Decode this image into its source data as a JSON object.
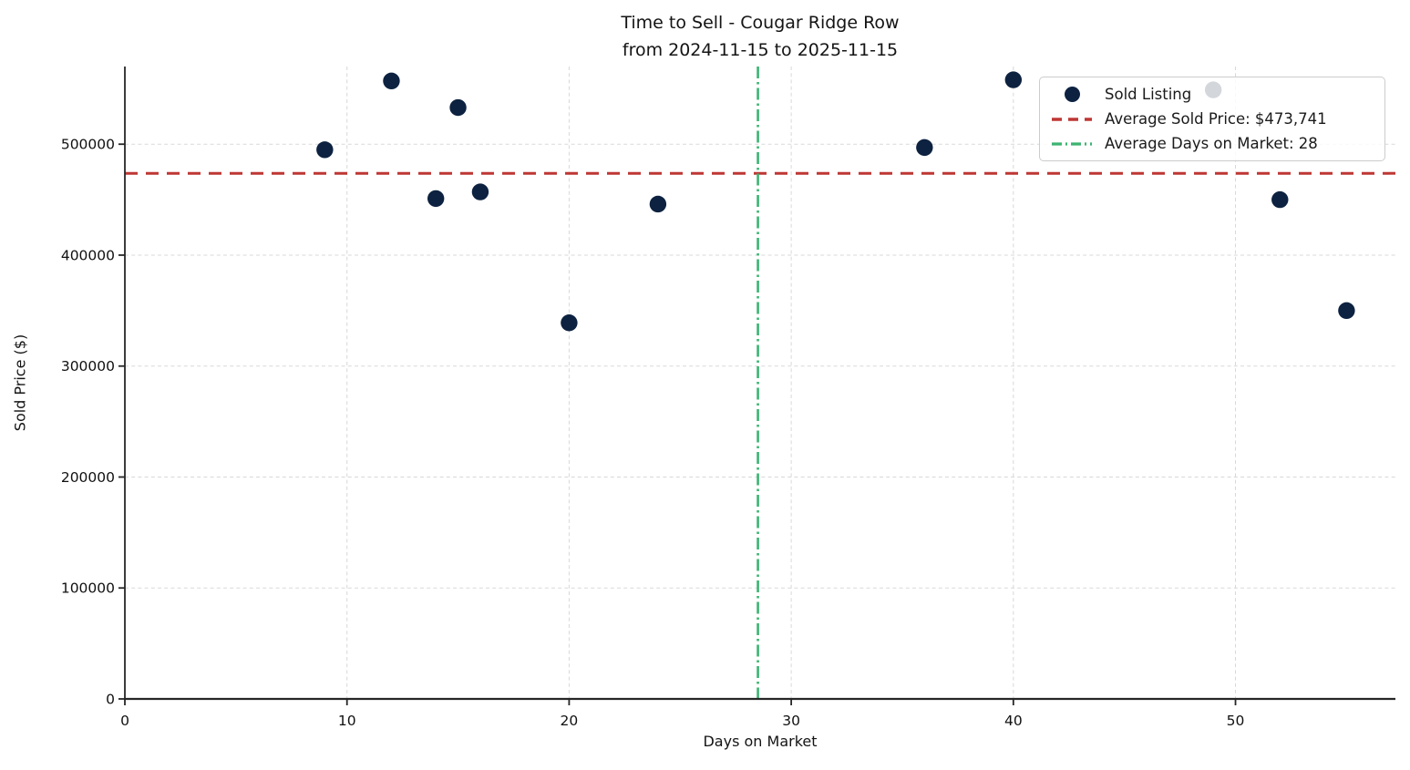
{
  "figure": {
    "title_line1": "Time to Sell - Cougar Ridge Row",
    "title_line2": "from 2024-11-15 to 2025-11-15",
    "xlabel": "Days on Market",
    "ylabel": "Sold Price ($)"
  },
  "legend": {
    "sold_listing_label": "Sold Listing",
    "avg_price_label": "Average Sold Price: $473,741",
    "avg_days_label": "Average Days on Market: 28"
  },
  "chart_data": {
    "type": "scatter",
    "title": "Time to Sell - Cougar Ridge Row from 2024-11-15 to 2025-11-15",
    "xlabel": "Days on Market",
    "ylabel": "Sold Price ($)",
    "x_ticks": [
      0,
      10,
      20,
      30,
      40,
      50
    ],
    "y_ticks": [
      0,
      100000,
      200000,
      300000,
      400000,
      500000
    ],
    "xlim": [
      0,
      57.2
    ],
    "ylim": [
      0,
      570000
    ],
    "grid": true,
    "legend_position": "upper right",
    "series": [
      {
        "name": "Sold Listing",
        "points": [
          {
            "days": 9,
            "price": 495000
          },
          {
            "days": 12,
            "price": 557000
          },
          {
            "days": 14,
            "price": 451000
          },
          {
            "days": 15,
            "price": 533000
          },
          {
            "days": 16,
            "price": 457000
          },
          {
            "days": 20,
            "price": 339000
          },
          {
            "days": 24,
            "price": 446000
          },
          {
            "days": 36,
            "price": 497000
          },
          {
            "days": 40,
            "price": 558000
          },
          {
            "days": 49,
            "price": 549000
          },
          {
            "days": 52,
            "price": 450000
          },
          {
            "days": 55,
            "price": 350000
          }
        ]
      }
    ],
    "reference_lines": {
      "average_sold_price": 473741,
      "average_days_on_market": 28.5,
      "average_days_displayed": 28
    },
    "colors": {
      "point": "#0d2240",
      "avg_price_line": "#bd3734",
      "avg_days_line": "#3cb371",
      "grid": "#d4d4d4",
      "spine": "#262626",
      "text": "#111111"
    }
  }
}
